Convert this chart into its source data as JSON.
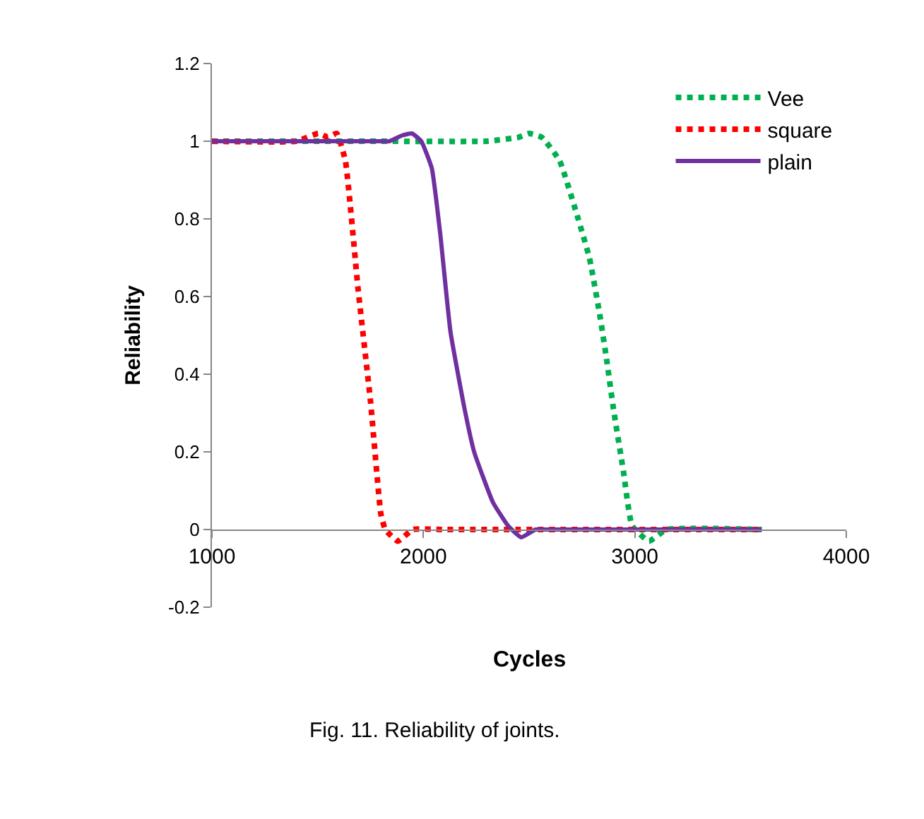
{
  "chart_data": {
    "type": "line",
    "xlabel": "Cycles",
    "ylabel": "Reliability",
    "xlim": [
      1000,
      4000
    ],
    "xticks": [
      1000,
      2000,
      3000,
      4000
    ],
    "ylim": [
      -0.2,
      1.2
    ],
    "yticks": [
      -0.2,
      0,
      0.2,
      0.4,
      0.6,
      0.8,
      1,
      1.2
    ],
    "legend": "top right",
    "marker": "none",
    "annotations": [
      "Fig. 11. Reliability of joints."
    ],
    "series": [
      {
        "name": "Vee",
        "color": "#00b050",
        "line_style": "dotted",
        "x": [
          1000,
          1800,
          2300,
          2450,
          2500,
          2560,
          2644,
          2732,
          2785,
          2832,
          2866,
          2899,
          2946,
          2987,
          3067,
          3150,
          3600
        ],
        "values": [
          1,
          1,
          1,
          1.01,
          1.02,
          1.01,
          0.95,
          0.8,
          0.7,
          0.56,
          0.44,
          0.31,
          0.15,
          0.01,
          -0.03,
          0,
          0
        ]
      },
      {
        "name": "square",
        "color": "#ff0000",
        "line_style": "dotted",
        "x": [
          1000,
          1400,
          1503,
          1550,
          1590,
          1631,
          1691,
          1750,
          1799,
          1820,
          1879,
          1950,
          2100,
          3600
        ],
        "values": [
          1,
          1,
          1.02,
          1.01,
          1.02,
          0.95,
          0.62,
          0.33,
          0.04,
          0,
          -0.03,
          0,
          0,
          0
        ]
      },
      {
        "name": "plain",
        "color": "#7030a0",
        "line_style": "solid",
        "x": [
          1000,
          1800,
          1839,
          1900,
          1946,
          1990,
          2040,
          2080,
          2128,
          2195,
          2240,
          2329,
          2400,
          2463,
          2530,
          2597,
          3600
        ],
        "values": [
          1,
          1,
          1.0,
          1.015,
          1.02,
          1.0,
          0.93,
          0.76,
          0.51,
          0.31,
          0.2,
          0.07,
          0.01,
          -0.02,
          0,
          0,
          0
        ]
      }
    ]
  }
}
